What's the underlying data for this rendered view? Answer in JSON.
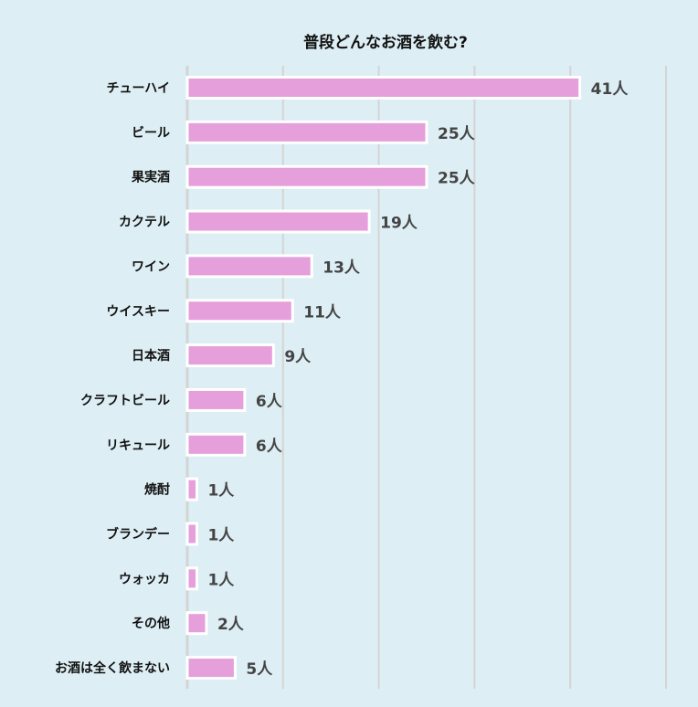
{
  "chart_data": {
    "type": "bar",
    "orientation": "horizontal",
    "title": "普段どんなお酒を飲む?",
    "categories": [
      "チューハイ",
      "ビール",
      "果実酒",
      "カクテル",
      "ワイン",
      "ウイスキー",
      "日本酒",
      "クラフトビール",
      "リキュール",
      "焼酎",
      "ブランデー",
      "ウォッカ",
      "その他",
      "お酒は全く飲まない"
    ],
    "values": [
      41,
      25,
      25,
      19,
      13,
      11,
      9,
      6,
      6,
      1,
      1,
      1,
      2,
      5
    ],
    "value_suffix": "人",
    "xlim": [
      0,
      50
    ],
    "grid": true,
    "xlabel": "",
    "ylabel": "",
    "colors": {
      "bar": "#e59fdb",
      "bar_border": "#ffffff",
      "grid": "#d4d4d4",
      "background": "#ddeef4"
    }
  }
}
